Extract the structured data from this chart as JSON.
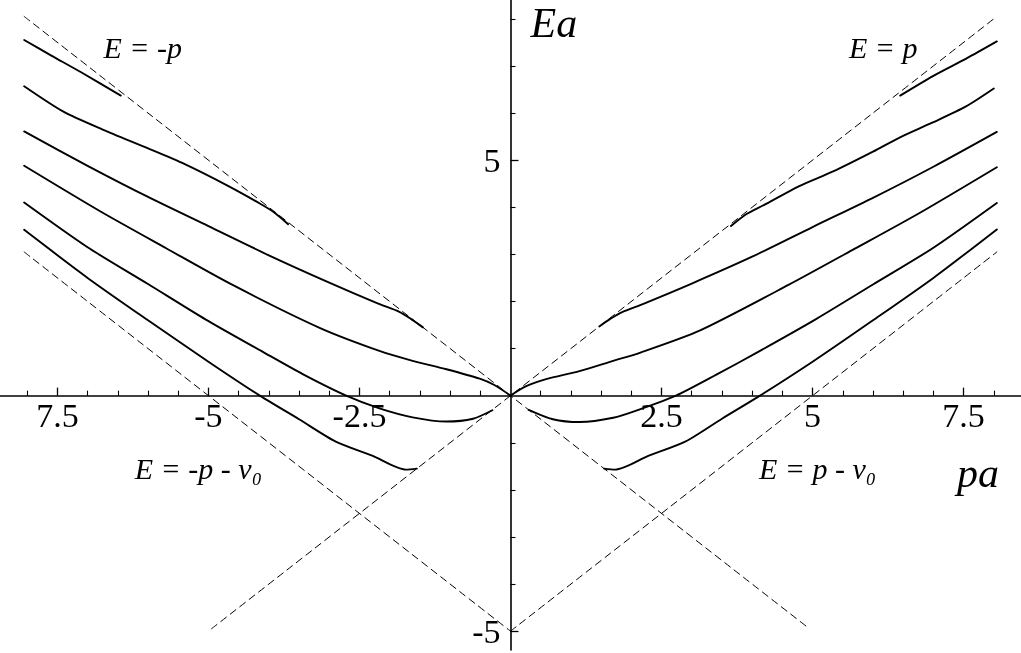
{
  "chart_data": {
    "type": "line",
    "xlabel": "pa",
    "ylabel": "Ea",
    "marker": "none",
    "xlim": [
      -8.45,
      8.45
    ],
    "ylim": [
      -5.4,
      8.4
    ],
    "xticks": [
      {
        "value": -8,
        "label": null
      },
      {
        "value": -7.5,
        "label": "7.5"
      },
      {
        "value": -7,
        "label": null
      },
      {
        "value": -6.5,
        "label": null
      },
      {
        "value": -6,
        "label": null
      },
      {
        "value": -5.5,
        "label": null
      },
      -5,
      {
        "value": -4.5,
        "label": null
      },
      {
        "value": -4,
        "label": null
      },
      {
        "value": -3.5,
        "label": null
      },
      {
        "value": -3,
        "label": null
      },
      -2.5,
      {
        "value": -2,
        "label": null
      },
      {
        "value": -1.5,
        "label": null
      },
      {
        "value": -1,
        "label": null
      },
      {
        "value": -0.5,
        "label": null
      },
      {
        "value": 0.5,
        "label": null
      },
      {
        "value": 1,
        "label": null
      },
      {
        "value": 1.5,
        "label": null
      },
      {
        "value": 2,
        "label": null
      },
      2.5,
      {
        "value": 3,
        "label": null
      },
      {
        "value": 3.5,
        "label": null
      },
      {
        "value": 4,
        "label": null
      },
      {
        "value": 4.5,
        "label": null
      },
      5,
      {
        "value": 5.5,
        "label": null
      },
      {
        "value": 6,
        "label": null
      },
      {
        "value": 6.5,
        "label": null
      },
      {
        "value": 7,
        "label": null
      },
      7.5,
      {
        "value": 8,
        "label": null
      }
    ],
    "yticks": [
      -5,
      {
        "value": -4,
        "label": null
      },
      {
        "value": -3,
        "label": null
      },
      {
        "value": -2,
        "label": null
      },
      {
        "value": -1,
        "label": null
      },
      {
        "value": 1,
        "label": null
      },
      {
        "value": 2,
        "label": null
      },
      {
        "value": 3,
        "label": null
      },
      {
        "value": 4,
        "label": null
      },
      5,
      {
        "value": 6,
        "label": null
      },
      {
        "value": 7,
        "label": null
      },
      {
        "value": 8,
        "label": null
      }
    ],
    "annotations": [
      {
        "text": "E = -p",
        "x": -7.4,
        "y": 7.4
      },
      {
        "text": "E = p",
        "x": 7.4,
        "y": 7.4
      },
      {
        "text": "E = -p - v₀",
        "x": -3.45,
        "y": -1.55
      },
      {
        "text": "E = p - v₀",
        "x": 3.45,
        "y": -1.55
      }
    ],
    "series": [
      {
        "color": "#000000",
        "line_style": "dashed",
        "x": [
          -4.95,
          8.05
        ],
        "values": [
          -4.95,
          8.05
        ]
      },
      {
        "color": "#000000",
        "line_style": "dashed",
        "x": [
          -8.05,
          4.95
        ],
        "values": [
          8.05,
          -4.95
        ]
      },
      {
        "color": "#000000",
        "line_style": "dashed",
        "x": [
          0,
          8.05
        ],
        "values": [
          -5,
          3.05
        ]
      },
      {
        "color": "#000000",
        "line_style": "dashed",
        "x": [
          -8.05,
          0
        ],
        "values": [
          3.05,
          -5
        ]
      },
      {
        "color": "#000000",
        "line_style": "solid",
        "x": [
          -8.05,
          -7.6,
          -7.1,
          -6.45
        ],
        "values": [
          7.55,
          7.22,
          6.86,
          6.37
        ]
      },
      {
        "color": "#000000",
        "line_style": "solid",
        "x": [
          6.45,
          7.0,
          7.55,
          8.05
        ],
        "values": [
          6.37,
          6.79,
          7.16,
          7.52
        ]
      },
      {
        "color": "#000000",
        "line_style": "solid",
        "x": [
          -8.05,
          -7.4,
          -6.75,
          -6.0,
          -5.4,
          -4.7,
          -4.15,
          -3.9,
          -3.68
        ],
        "values": [
          6.57,
          6.03,
          5.65,
          5.25,
          4.92,
          4.47,
          4.08,
          3.88,
          3.64
        ]
      },
      {
        "color": "#000000",
        "line_style": "solid",
        "x": [
          3.65,
          3.9,
          4.2,
          4.78,
          5.34,
          6.0,
          6.44,
          6.99,
          7.54,
          8.0
        ],
        "values": [
          3.6,
          3.85,
          4.05,
          4.45,
          4.76,
          5.18,
          5.48,
          5.8,
          6.14,
          6.52
        ]
      },
      {
        "color": "#000000",
        "line_style": "solid",
        "x": [
          -8.05,
          -7.0,
          -6.0,
          -5.0,
          -4.0,
          -3.0,
          -2.2,
          -1.84,
          -1.65,
          -1.45
        ],
        "values": [
          5.61,
          4.88,
          4.22,
          3.6,
          2.98,
          2.4,
          1.96,
          1.78,
          1.63,
          1.45
        ]
      },
      {
        "color": "#000000",
        "line_style": "solid",
        "x": [
          1.47,
          1.65,
          1.84,
          2.2,
          3.0,
          4.0,
          5.0,
          6.0,
          7.0,
          8.05
        ],
        "values": [
          1.47,
          1.63,
          1.77,
          1.95,
          2.38,
          2.95,
          3.58,
          4.2,
          4.86,
          5.6
        ]
      },
      {
        "color": "#000000",
        "line_style": "solid",
        "x": [
          -8.05,
          -6.8,
          -5.7,
          -4.6,
          -3.16,
          -2.17,
          -1.62,
          -1.06,
          -0.51,
          -0.26,
          0
        ],
        "values": [
          4.88,
          3.92,
          3.13,
          2.35,
          1.44,
          0.95,
          0.74,
          0.56,
          0.36,
          0.22,
          0
        ]
      },
      {
        "color": "#000000",
        "line_style": "solid",
        "x": [
          0,
          0.26,
          0.59,
          1.14,
          1.7,
          2.14,
          3.13,
          4.6,
          5.7,
          6.8,
          8.05
        ],
        "values": [
          0,
          0.2,
          0.35,
          0.52,
          0.74,
          0.91,
          1.38,
          2.35,
          3.12,
          3.9,
          4.85
        ]
      },
      {
        "color": "#000000",
        "line_style": "solid",
        "x": [
          -8.05,
          -7.0,
          -6.0,
          -5.05,
          -4.1,
          -3.4,
          -2.72,
          -2.17,
          -1.62,
          -1.06,
          -0.62,
          -0.3
        ],
        "values": [
          4.1,
          3.15,
          2.37,
          1.62,
          0.93,
          0.43,
          0,
          -0.27,
          -0.46,
          -0.55,
          -0.49,
          -0.31
        ]
      },
      {
        "color": "#000000",
        "line_style": "solid",
        "x": [
          0.3,
          0.7,
          1.14,
          1.7,
          2.14,
          2.74,
          3.4,
          4.1,
          5.05,
          6.0,
          7.0,
          8.05
        ],
        "values": [
          -0.3,
          -0.5,
          -0.56,
          -0.47,
          -0.29,
          0,
          0.44,
          0.93,
          1.62,
          2.36,
          3.14,
          4.09
        ]
      },
      {
        "color": "#000000",
        "line_style": "solid",
        "x": [
          -8.05,
          -7.0,
          -6.0,
          -5.0,
          -4.15,
          -3.5,
          -2.9,
          -2.28,
          -1.73,
          -1.55
        ],
        "values": [
          3.52,
          2.5,
          1.6,
          0.72,
          0,
          -0.5,
          -0.97,
          -1.28,
          -1.57,
          -1.55
        ]
      },
      {
        "color": "#000000",
        "line_style": "solid",
        "x": [
          1.55,
          1.73,
          2.28,
          2.9,
          3.5,
          4.13,
          5.0,
          6.0,
          7.0,
          8.05
        ],
        "values": [
          -1.55,
          -1.57,
          -1.28,
          -0.97,
          -0.49,
          0,
          0.72,
          1.6,
          2.5,
          3.53
        ]
      }
    ]
  }
}
